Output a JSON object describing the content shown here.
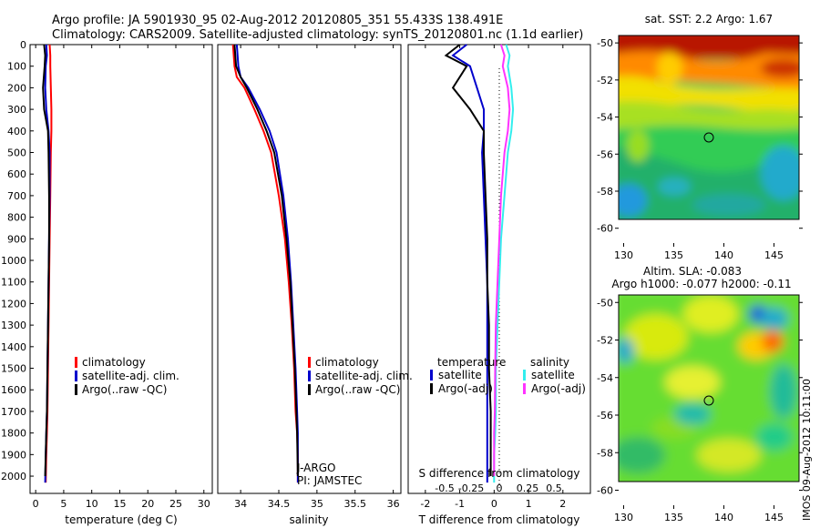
{
  "title_line1": "Argo profile: JA 5901930_95 02-Aug-2012 20120805_351 55.433S 138.491E",
  "title_line2": "Climatology: CARS2009. Satellite-adjusted climatology: synTS_20120801.nc (1.1d earlier)",
  "colors": {
    "climatology": "#ff0000",
    "satellite_adj": "#0000cc",
    "argo": "#000000",
    "salinity_satellite": "#33eeee",
    "salinity_argo": "#ff33ff"
  },
  "chart_data": [
    {
      "type": "line",
      "panel": "temperature",
      "xlabel": "temperature (deg C)",
      "ylabel": "",
      "xlim": [
        -1,
        31.5
      ],
      "ylim": [
        2080,
        0
      ],
      "xticks": [
        0,
        5,
        10,
        15,
        20,
        25,
        30
      ],
      "yticks": [
        0,
        100,
        200,
        300,
        400,
        500,
        600,
        700,
        800,
        900,
        1000,
        1100,
        1200,
        1300,
        1400,
        1500,
        1600,
        1700,
        1800,
        1900,
        2000
      ],
      "legend": [
        "climatology",
        "satellite-adj. clim.",
        "Argo(..raw -QC)"
      ],
      "series": [
        {
          "name": "climatology",
          "color_key": "climatology",
          "x": [
            2.5,
            2.6,
            2.6,
            2.7,
            2.8,
            2.8,
            2.7,
            2.6,
            2.5,
            2.4,
            2.3,
            2.2,
            2.1,
            2.0,
            1.9,
            1.8
          ],
          "y": [
            0,
            50,
            100,
            200,
            300,
            400,
            500,
            700,
            900,
            1100,
            1300,
            1500,
            1700,
            1800,
            1900,
            2030
          ]
        },
        {
          "name": "satellite-adj. clim.",
          "color_key": "satellite_adj",
          "x": [
            1.9,
            2.0,
            1.8,
            1.7,
            1.9,
            2.3,
            2.5,
            2.5,
            2.4,
            2.3,
            2.2,
            2.1,
            2.0,
            1.9,
            1.8,
            1.7
          ],
          "y": [
            0,
            50,
            100,
            200,
            300,
            400,
            500,
            700,
            900,
            1100,
            1300,
            1500,
            1700,
            1800,
            1900,
            2030
          ]
        },
        {
          "name": "Argo(..raw -QC)",
          "color_key": "argo",
          "x": [
            1.5,
            1.7,
            1.6,
            1.3,
            1.5,
            2.2,
            2.3,
            2.4,
            2.4,
            2.3,
            2.2,
            2.1,
            2.0,
            1.9,
            1.8,
            1.7
          ],
          "y": [
            0,
            50,
            100,
            200,
            300,
            400,
            500,
            700,
            900,
            1100,
            1300,
            1500,
            1700,
            1800,
            1900,
            2000
          ]
        }
      ]
    },
    {
      "type": "line",
      "panel": "salinity",
      "xlabel": "salinity",
      "ylabel": "",
      "xlim": [
        33.7,
        36.1
      ],
      "ylim": [
        2080,
        0
      ],
      "xticks": [
        34,
        34.5,
        35,
        35.5,
        36
      ],
      "legend": [
        "climatology",
        "satellite-adj. clim.",
        "Argo(..raw -QC)"
      ],
      "annotation": [
        "J-ARGO",
        "PI: JAMSTEC"
      ],
      "series": [
        {
          "name": "climatology",
          "color_key": "climatology",
          "x": [
            33.9,
            33.92,
            33.95,
            34.05,
            34.18,
            34.3,
            34.4,
            34.5,
            34.58,
            34.63,
            34.67,
            34.7,
            34.72,
            34.74,
            34.75,
            34.75
          ],
          "y": [
            0,
            100,
            150,
            200,
            300,
            400,
            500,
            700,
            900,
            1100,
            1300,
            1500,
            1700,
            1800,
            1900,
            2030
          ]
        },
        {
          "name": "satellite-adj. clim.",
          "color_key": "satellite_adj",
          "x": [
            33.95,
            33.97,
            34.0,
            34.1,
            34.25,
            34.38,
            34.47,
            34.56,
            34.62,
            34.66,
            34.69,
            34.72,
            34.74,
            34.75,
            34.75,
            34.75
          ],
          "y": [
            0,
            100,
            150,
            200,
            300,
            400,
            500,
            700,
            900,
            1100,
            1300,
            1500,
            1700,
            1800,
            1900,
            2030
          ]
        },
        {
          "name": "Argo(..raw -QC)",
          "color_key": "argo",
          "x": [
            33.92,
            33.94,
            34.0,
            34.08,
            34.22,
            34.34,
            34.44,
            34.54,
            34.6,
            34.65,
            34.68,
            34.71,
            34.73,
            34.74,
            34.75
          ],
          "y": [
            0,
            100,
            150,
            200,
            300,
            400,
            500,
            700,
            900,
            1100,
            1300,
            1500,
            1700,
            1800,
            2000
          ]
        }
      ]
    },
    {
      "type": "line",
      "panel": "difference",
      "xlabel": "T difference from climatology",
      "ylabel": "",
      "xlim": [
        -2.5,
        2.8
      ],
      "ylim": [
        2080,
        0
      ],
      "xticks": [
        -2,
        -1,
        0,
        1,
        2
      ],
      "top_xlabel": "S difference from climatology",
      "top_xticks": [
        "-0.5",
        "-0.25",
        "0",
        "0.25",
        "0.5"
      ],
      "legend_titles": [
        "temperature",
        "salinity"
      ],
      "legend": [
        "satellite",
        "Argo(-adj)",
        "satellite",
        "Argo(-adj)"
      ],
      "series": [
        {
          "name": "satellite",
          "color_key": "satellite_adj",
          "x": [
            -0.8,
            -1.2,
            -0.7,
            -0.5,
            -0.3,
            -0.3,
            -0.35,
            -0.3,
            -0.25,
            -0.2,
            -0.2,
            -0.2,
            -0.2,
            -0.2,
            -0.2,
            -0.2
          ],
          "y": [
            0,
            50,
            100,
            200,
            300,
            400,
            500,
            700,
            900,
            1100,
            1300,
            1500,
            1700,
            1800,
            1900,
            2030
          ]
        },
        {
          "name": "Argo(-adj)",
          "color_key": "argo",
          "x": [
            -1.0,
            -1.4,
            -0.8,
            -1.2,
            -0.7,
            -0.3,
            -0.3,
            -0.25,
            -0.2,
            -0.2,
            -0.15,
            -0.15,
            -0.1,
            -0.1,
            -0.1
          ],
          "y": [
            0,
            50,
            100,
            200,
            300,
            400,
            500,
            700,
            900,
            1100,
            1300,
            1500,
            1700,
            1800,
            2000
          ]
        },
        {
          "name": "satellite (S)",
          "color_key": "salinity_satellite",
          "x": [
            0.35,
            0.45,
            0.4,
            0.5,
            0.55,
            0.5,
            0.4,
            0.3,
            0.2,
            0.15,
            0.1,
            0.05,
            0.05,
            0.03,
            0.0,
            0.0
          ],
          "y": [
            0,
            50,
            100,
            200,
            300,
            400,
            500,
            700,
            900,
            1100,
            1300,
            1500,
            1700,
            1800,
            1900,
            2030
          ]
        },
        {
          "name": "Argo(-adj) (S)",
          "color_key": "salinity_argo",
          "x": [
            0.2,
            0.3,
            0.25,
            0.4,
            0.45,
            0.4,
            0.3,
            0.2,
            0.15,
            0.1,
            0.05,
            0.03,
            0.02,
            0.0,
            0.0
          ],
          "y": [
            0,
            50,
            100,
            200,
            300,
            400,
            500,
            700,
            900,
            1100,
            1300,
            1500,
            1700,
            1800,
            2000
          ]
        }
      ]
    },
    {
      "type": "heatmap",
      "panel": "map_sst",
      "title": "sat. SST: 2.2 Argo: 1.67",
      "xlim": [
        129.5,
        147.5
      ],
      "ylim": [
        -60.8,
        -49.6
      ],
      "xticks": [
        130,
        135,
        140,
        145
      ],
      "yticks": [
        -50,
        -52,
        -54,
        -56,
        -58,
        -60
      ],
      "marker": {
        "lon": 138.5,
        "lat": -55.4
      }
    },
    {
      "type": "heatmap",
      "panel": "map_sla",
      "title_line1": "Altim. SLA: -0.083",
      "title_line2": "Argo h1000: -0.077 h2000: -0.11",
      "xlim": [
        129.5,
        147.5
      ],
      "ylim": [
        -60.8,
        -49.6
      ],
      "xticks": [
        130,
        135,
        140,
        145
      ],
      "yticks": [
        -50,
        -52,
        -54,
        -56,
        -58,
        -60
      ],
      "marker": {
        "lon": 138.5,
        "lat": -55.4
      }
    }
  ],
  "side_text": "IMOS 09-Aug-2012 10:11:00"
}
